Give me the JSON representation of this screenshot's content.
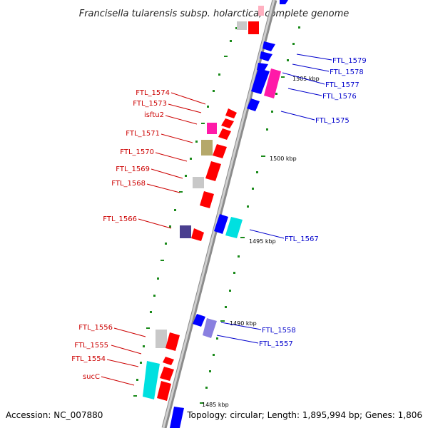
{
  "title": "Francisella tularensis subsp. holarctica, complete genome",
  "footer": {
    "accession": "Accession: NC_007880",
    "topology": "Topology: circular; Length: 1,895,994 bp; Genes: 1,806"
  },
  "colors": {
    "forward_label": "#0000cc",
    "reverse_label": "#cc0000",
    "red_gene": "#ff0000",
    "blue_gene": "#0000ff",
    "magenta_gene": "#ff1aa8",
    "cyan_gene": "#00e0e0",
    "tan_gene": "#b5a86a",
    "grey_gene": "#c8c8c8",
    "violet_gene": "#8a80e0",
    "navy_gene": "#4a3f8f",
    "tick": "#1a8a1a"
  },
  "scale_labels": [
    "1505 kbp",
    "1500 kbp",
    "1495 kbp",
    "1490 kbp",
    "1485 kbp"
  ],
  "forward_labels": [
    "FTL_1579",
    "FTL_1578",
    "FTL_1577",
    "FTL_1576",
    "FTL_1575",
    "FTL_1567",
    "FTL_1558",
    "FTL_1557"
  ],
  "reverse_labels": [
    "FTL_1574",
    "FTL_1573",
    "isftu2",
    "FTL_1571",
    "FTL_1570",
    "FTL_1569",
    "FTL_1568",
    "FTL_1566",
    "FTL_1556",
    "FTL_1555",
    "FTL_1554",
    "sucC"
  ]
}
